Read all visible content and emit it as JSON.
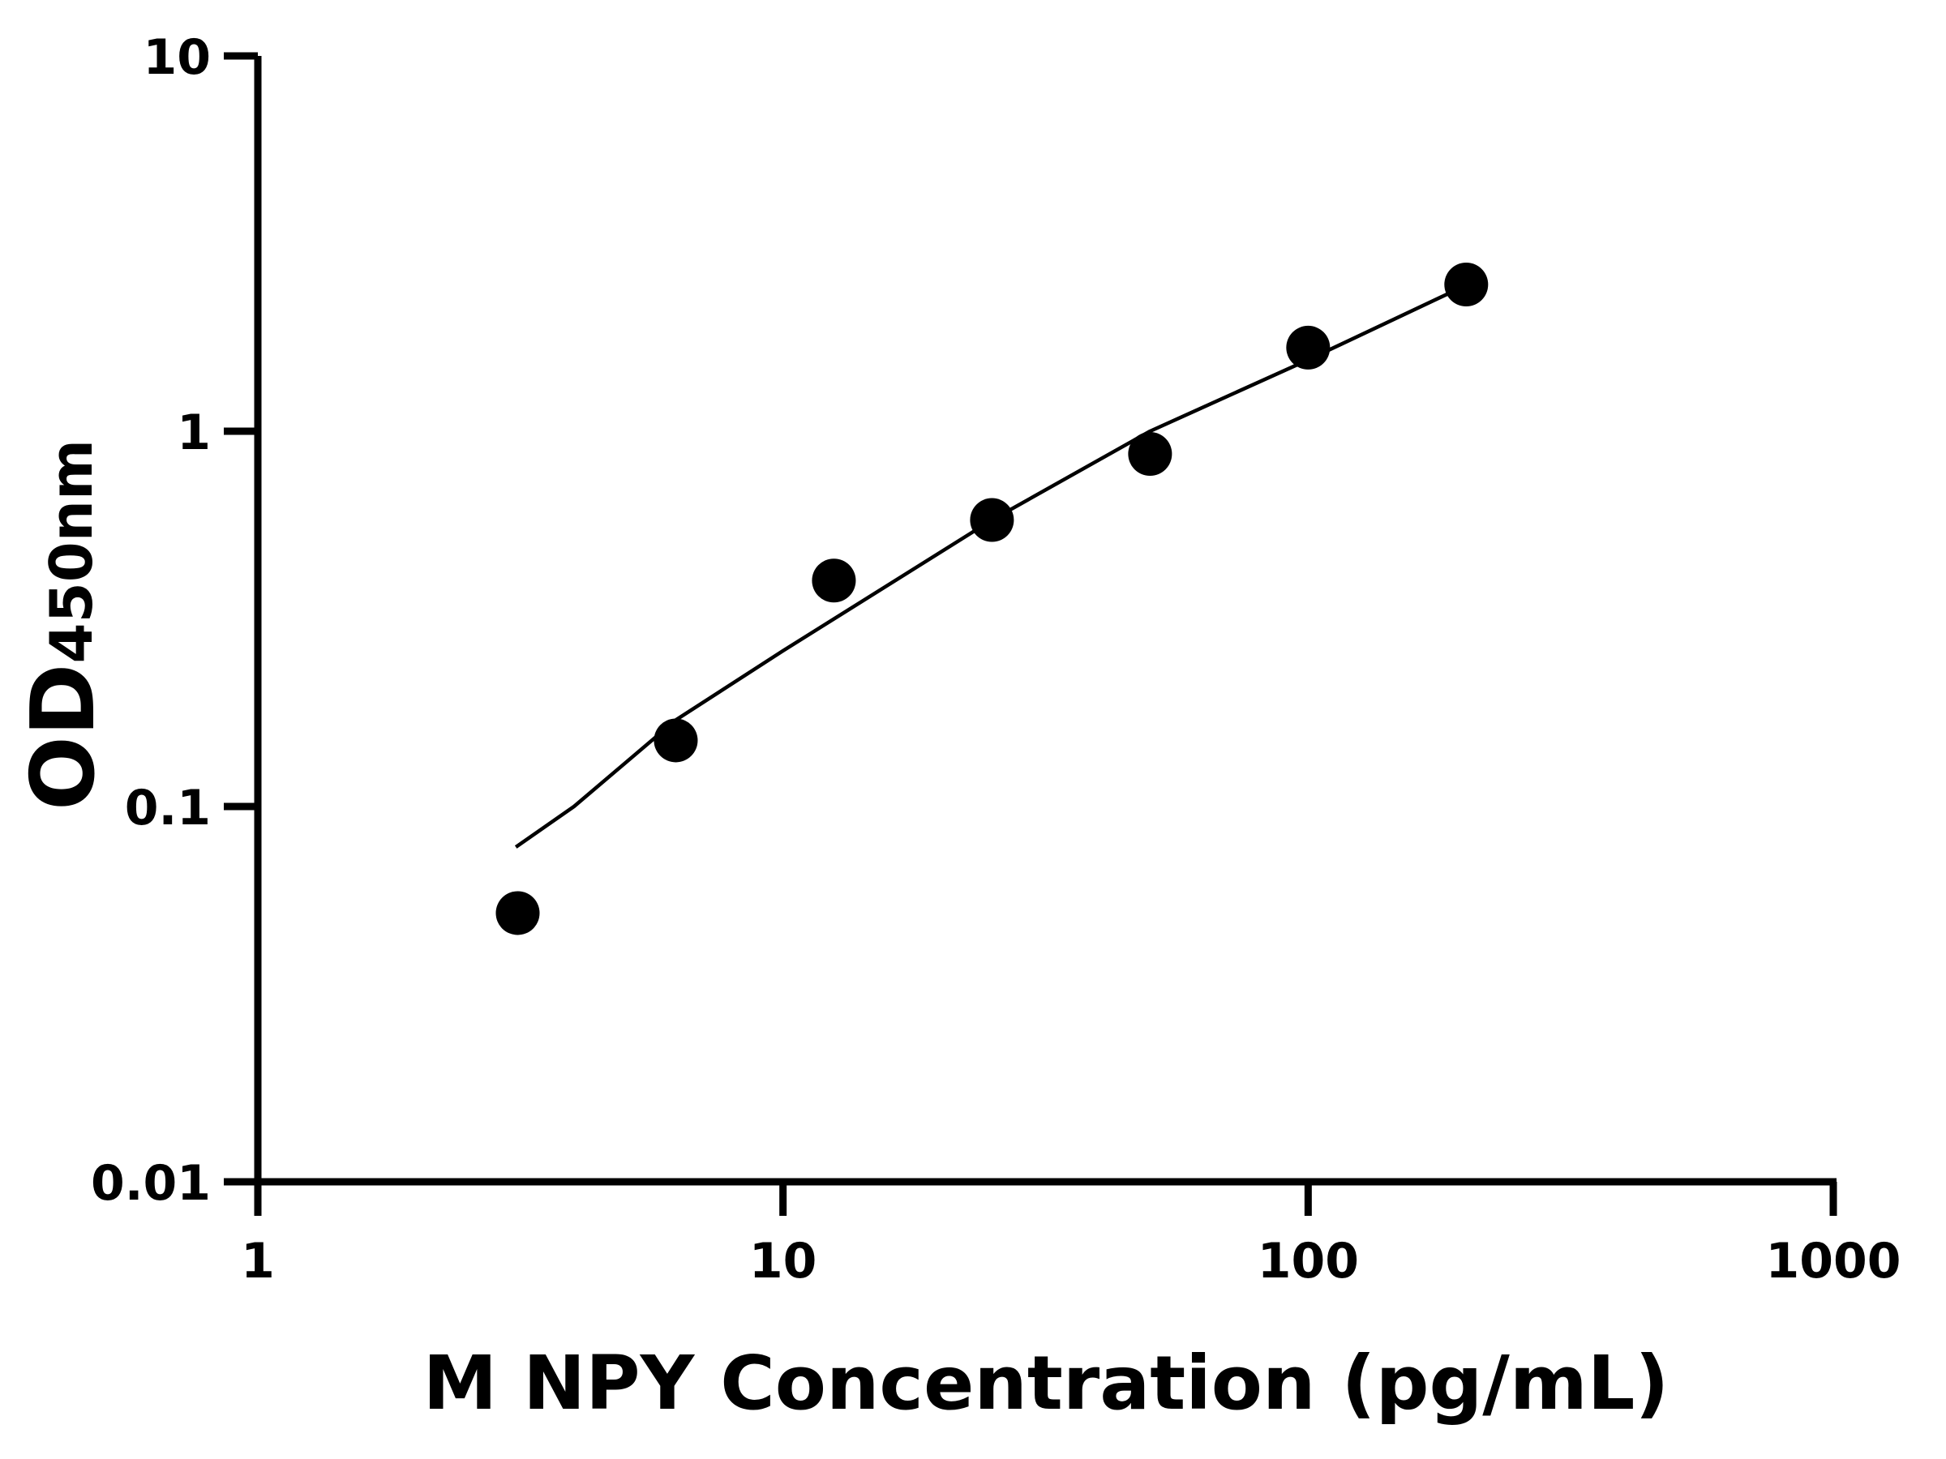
{
  "chart_data": {
    "type": "scatter",
    "title": "",
    "xlabel": "M NPY Concentration (pg/mL)",
    "ylabel_main": "OD",
    "ylabel_sub": "450nm",
    "x_scale": "log",
    "y_scale": "log",
    "xlim": [
      1,
      1000
    ],
    "ylim": [
      0.01,
      10
    ],
    "x_ticks": [
      1,
      10,
      100,
      1000
    ],
    "x_tick_labels": [
      "1",
      "10",
      "100",
      "1000"
    ],
    "y_ticks": [
      0.01,
      0.1,
      1,
      10
    ],
    "y_tick_labels": [
      "0.01",
      "0.1",
      "1",
      "10"
    ],
    "grid": false,
    "colors": {
      "points": "#000000",
      "curve": "#000000",
      "axes": "#000000"
    },
    "series": [
      {
        "x": [
          3.125,
          6.25,
          12.5,
          25,
          50,
          100,
          200
        ],
        "y": [
          0.052,
          0.15,
          0.4,
          0.58,
          0.87,
          1.67,
          2.46
        ]
      }
    ],
    "fit_curve": {
      "x": [
        3.1,
        4,
        6.25,
        10,
        25,
        50,
        100,
        200
      ],
      "y": [
        0.078,
        0.1,
        0.17,
        0.26,
        0.58,
        1.0,
        1.55,
        2.45
      ]
    }
  }
}
